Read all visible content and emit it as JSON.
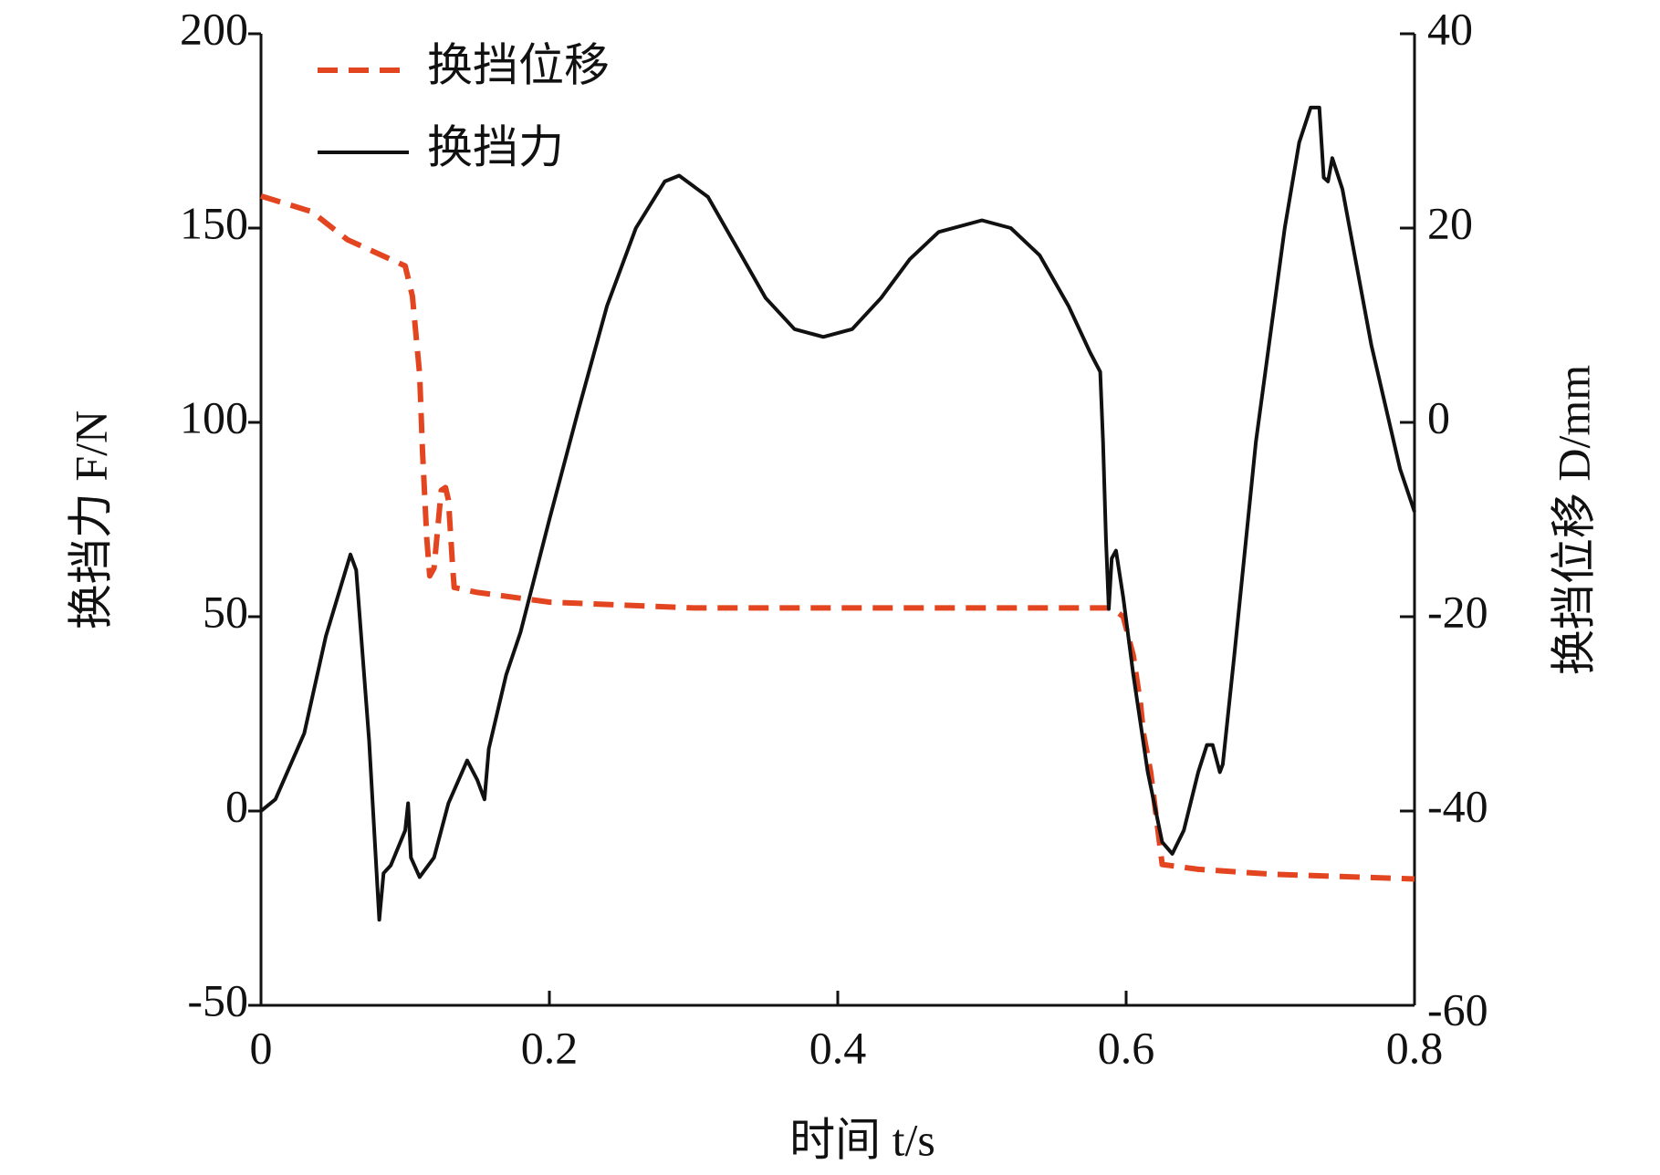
{
  "chart_data": {
    "type": "line",
    "x_label": "时间 t/s",
    "y_label": "换挡力 F/N",
    "y2_label": "换挡位移 D/mm",
    "xlim": [
      0,
      0.8
    ],
    "xticks": [
      0,
      0.2,
      0.4,
      0.6,
      0.8
    ],
    "ylim": [
      -50,
      200
    ],
    "yticks": [
      -50,
      0,
      50,
      100,
      150,
      200
    ],
    "y2lim": [
      -60,
      40
    ],
    "y2ticks": [
      -60,
      -40,
      -20,
      0,
      20,
      40
    ],
    "legend": "upper left",
    "series": [
      {
        "name": "换挡位移",
        "color": "#e2451f",
        "dash": true,
        "axis": "y2",
        "x": [
          0,
          0.035,
          0.06,
          0.1,
          0.105,
          0.11,
          0.112,
          0.115,
          0.117,
          0.12,
          0.125,
          0.128,
          0.13,
          0.133,
          0.134,
          0.15,
          0.2,
          0.3,
          0.59,
          0.598,
          0.605,
          0.61,
          0.612,
          0.617,
          0.625,
          0.65,
          0.7,
          0.8
        ],
        "values": [
          23.3,
          21.7,
          18.8,
          16.1,
          13,
          5,
          -3,
          -12,
          -15.8,
          -15,
          -7,
          -6.7,
          -8,
          -15,
          -17,
          -17.5,
          -18.5,
          -19.1,
          -19.1,
          -20,
          -24,
          -29,
          -32,
          -36,
          -45.5,
          -46,
          -46.5,
          -47
        ]
      },
      {
        "name": "换挡力",
        "color": "#111111",
        "dash": false,
        "axis": "y",
        "x": [
          0,
          0.01,
          0.03,
          0.045,
          0.062,
          0.066,
          0.075,
          0.082,
          0.085,
          0.09,
          0.1,
          0.102,
          0.104,
          0.11,
          0.12,
          0.13,
          0.143,
          0.15,
          0.155,
          0.158,
          0.17,
          0.18,
          0.2,
          0.22,
          0.24,
          0.26,
          0.28,
          0.29,
          0.31,
          0.33,
          0.35,
          0.37,
          0.39,
          0.41,
          0.43,
          0.45,
          0.47,
          0.5,
          0.52,
          0.54,
          0.56,
          0.575,
          0.582,
          0.584,
          0.586,
          0.588,
          0.59,
          0.593,
          0.598,
          0.605,
          0.615,
          0.625,
          0.632,
          0.64,
          0.65,
          0.656,
          0.66,
          0.665,
          0.667,
          0.675,
          0.69,
          0.71,
          0.72,
          0.728,
          0.734,
          0.737,
          0.74,
          0.743,
          0.75,
          0.77,
          0.79,
          0.8
        ],
        "values": [
          0,
          3,
          20,
          45,
          66,
          62,
          18,
          -28,
          -16,
          -14,
          -5,
          2,
          -12,
          -17,
          -12,
          2,
          13,
          8,
          3,
          16,
          35,
          46,
          75,
          103,
          130,
          150,
          162,
          163.5,
          158,
          145,
          132,
          124,
          122,
          124,
          132,
          142,
          149,
          152,
          150,
          143,
          130,
          118,
          113,
          95,
          70,
          52,
          65,
          67,
          55,
          35,
          10,
          -8,
          -11,
          -5,
          10,
          17,
          17,
          10,
          12,
          40,
          95,
          150,
          172,
          181,
          181,
          163,
          162,
          168,
          160,
          120,
          88,
          77
        ]
      }
    ]
  }
}
